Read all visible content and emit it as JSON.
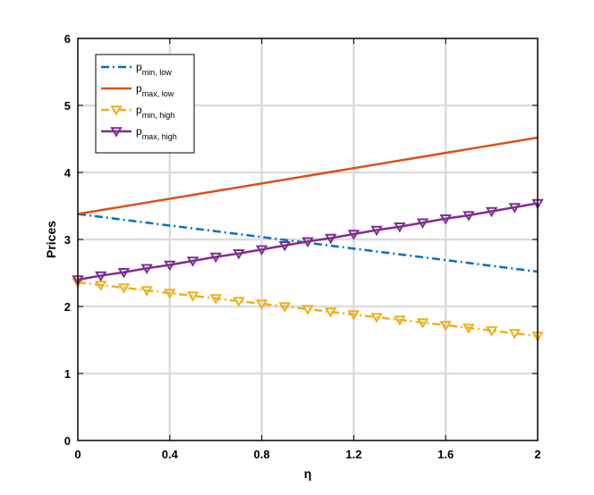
{
  "chart_data": {
    "type": "line",
    "xlabel": "η",
    "ylabel": "Prices",
    "xlim": [
      0,
      2
    ],
    "ylim": [
      0,
      6
    ],
    "xticks": [
      "0",
      "0.4",
      "0.8",
      "1.2",
      "1.6",
      "2"
    ],
    "xtick_values": [
      0,
      0.4,
      0.8,
      1.2,
      1.6,
      2
    ],
    "yticks": [
      "0",
      "1",
      "2",
      "3",
      "4",
      "5",
      "6"
    ],
    "ytick_values": [
      0,
      1,
      2,
      3,
      4,
      5,
      6
    ],
    "grid": true,
    "legend_position": "top-left",
    "series": [
      {
        "name_main": "p",
        "name_sub": "min, low",
        "color": "#0072BD",
        "style": "dashdot",
        "marker": "none",
        "x": [
          0,
          2
        ],
        "values": [
          3.38,
          2.52
        ]
      },
      {
        "name_main": "p",
        "name_sub": "max, low",
        "color": "#D95319",
        "style": "solid",
        "marker": "none",
        "x": [
          0,
          2
        ],
        "values": [
          3.38,
          4.52
        ]
      },
      {
        "name_main": "p",
        "name_sub": "min, high",
        "color": "#EDB120",
        "style": "dashdot",
        "marker": "triangle-down",
        "x": [
          0,
          0.1,
          0.2,
          0.3,
          0.4,
          0.5,
          0.6,
          0.7,
          0.8,
          0.9,
          1.0,
          1.1,
          1.2,
          1.3,
          1.4,
          1.5,
          1.6,
          1.7,
          1.8,
          1.9,
          2.0
        ],
        "values": [
          2.36,
          2.32,
          2.28,
          2.24,
          2.2,
          2.16,
          2.12,
          2.08,
          2.04,
          2.0,
          1.96,
          1.92,
          1.88,
          1.84,
          1.8,
          1.76,
          1.72,
          1.68,
          1.64,
          1.6,
          1.56
        ]
      },
      {
        "name_main": "p",
        "name_sub": "max, high",
        "color": "#7E2F8E",
        "style": "solid",
        "marker": "triangle-down",
        "x": [
          0,
          0.1,
          0.2,
          0.3,
          0.4,
          0.5,
          0.6,
          0.7,
          0.8,
          0.9,
          1.0,
          1.1,
          1.2,
          1.3,
          1.4,
          1.5,
          1.6,
          1.7,
          1.8,
          1.9,
          2.0
        ],
        "values": [
          2.4,
          2.46,
          2.51,
          2.57,
          2.62,
          2.68,
          2.74,
          2.79,
          2.85,
          2.91,
          2.97,
          3.02,
          3.08,
          3.14,
          3.19,
          3.25,
          3.31,
          3.36,
          3.42,
          3.48,
          3.54
        ]
      }
    ]
  }
}
